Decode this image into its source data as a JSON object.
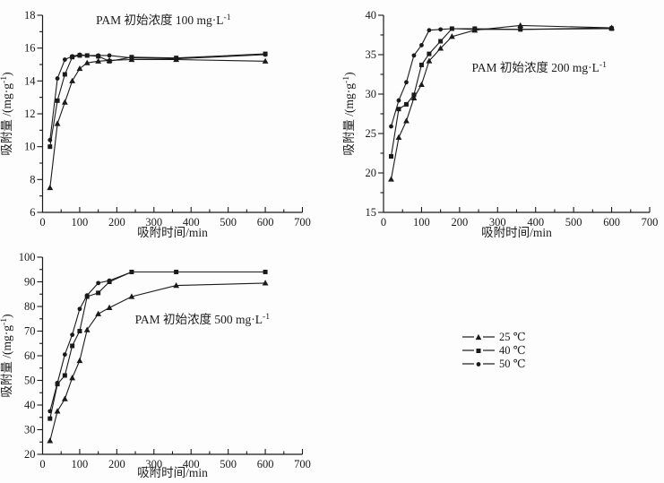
{
  "figure": {
    "background": "#fdfdfd",
    "ink_color": "#1a1a1a"
  },
  "legend": {
    "position": "middle-right",
    "items": [
      {
        "marker": "triangle",
        "label": "25 ℃"
      },
      {
        "marker": "square",
        "label": "40 ℃"
      },
      {
        "marker": "circle",
        "label": "50 ℃"
      }
    ]
  },
  "chart_data": [
    {
      "type": "line",
      "title": "PAM 初始浓度 100 mg·L⁻¹",
      "xlabel": "吸附时间/min",
      "ylabel": "吸附量 /(mg·g⁻¹)",
      "x": [
        20,
        40,
        60,
        80,
        100,
        120,
        150,
        180,
        240,
        360,
        600
      ],
      "series": [
        {
          "name": "25 ℃",
          "marker": "triangle",
          "values": [
            7.5,
            11.4,
            12.7,
            14.0,
            14.75,
            15.1,
            15.2,
            15.25,
            15.3,
            15.3,
            15.2
          ]
        },
        {
          "name": "40 ℃",
          "marker": "square",
          "values": [
            10.0,
            12.8,
            14.4,
            15.45,
            15.55,
            15.55,
            15.5,
            15.2,
            15.45,
            15.4,
            15.65
          ]
        },
        {
          "name": "50 ℃",
          "marker": "circle",
          "values": [
            10.4,
            14.15,
            15.3,
            15.5,
            15.6,
            15.55,
            15.55,
            15.55,
            15.4,
            15.35,
            15.6
          ]
        }
      ],
      "xlim": [
        0,
        700
      ],
      "ylim": [
        6,
        18
      ],
      "xtick_major": 100,
      "xtick_minor": 50,
      "ytick_major": 2,
      "ytick_minor": 1,
      "grid": false,
      "title_frac": [
        0.465,
        0.0
      ]
    },
    {
      "type": "line",
      "title": "PAM 初始浓度 200 mg·L⁻¹",
      "xlabel": "吸附时间/min",
      "ylabel": "吸附量 /(mg·g⁻¹)",
      "x": [
        20,
        40,
        60,
        80,
        100,
        120,
        150,
        180,
        240,
        360,
        600
      ],
      "series": [
        {
          "name": "25 ℃",
          "marker": "triangle",
          "values": [
            19.2,
            24.5,
            26.6,
            29.5,
            31.2,
            34.2,
            35.8,
            37.3,
            38.1,
            38.7,
            38.4
          ]
        },
        {
          "name": "40 ℃",
          "marker": "square",
          "values": [
            22.1,
            28.1,
            28.7,
            29.9,
            33.7,
            35.1,
            36.7,
            38.3,
            38.3,
            38.2,
            38.3
          ]
        },
        {
          "name": "50 ℃",
          "marker": "circle",
          "values": [
            25.9,
            29.2,
            31.5,
            34.9,
            36.2,
            38.1,
            38.2,
            38.3,
            38.2,
            38.2,
            38.4
          ]
        }
      ],
      "xlim": [
        0,
        700
      ],
      "ylim": [
        15,
        40
      ],
      "xtick_major": 100,
      "xtick_minor": 50,
      "ytick_major": 5,
      "ytick_minor": 2.5,
      "grid": false,
      "title_frac": [
        0.585,
        0.24
      ]
    },
    {
      "type": "line",
      "title": "PAM 初始浓度 500 mg·L⁻¹",
      "xlabel": "吸附时间/min",
      "ylabel": "吸附量 /(mg·g⁻¹)",
      "x": [
        20,
        40,
        60,
        80,
        100,
        120,
        150,
        180,
        240,
        360,
        600
      ],
      "series": [
        {
          "name": "25 ℃",
          "marker": "triangle",
          "values": [
            25.5,
            37.5,
            42.5,
            51,
            58,
            70.5,
            77,
            79.5,
            84,
            88.5,
            89.5
          ]
        },
        {
          "name": "40 ℃",
          "marker": "square",
          "values": [
            34.5,
            48.5,
            52,
            64,
            70,
            84,
            85.5,
            90,
            94,
            94,
            94
          ]
        },
        {
          "name": "50 ℃",
          "marker": "circle",
          "values": [
            37.5,
            49,
            60.5,
            68.5,
            79,
            84.5,
            89.5,
            90.5,
            94,
            94,
            94
          ]
        }
      ],
      "xlim": [
        0,
        700
      ],
      "ylim": [
        20,
        100
      ],
      "xtick_major": 100,
      "xtick_minor": 50,
      "ytick_major": 10,
      "ytick_minor": 5,
      "grid": false,
      "title_frac": [
        0.615,
        0.29
      ]
    }
  ]
}
